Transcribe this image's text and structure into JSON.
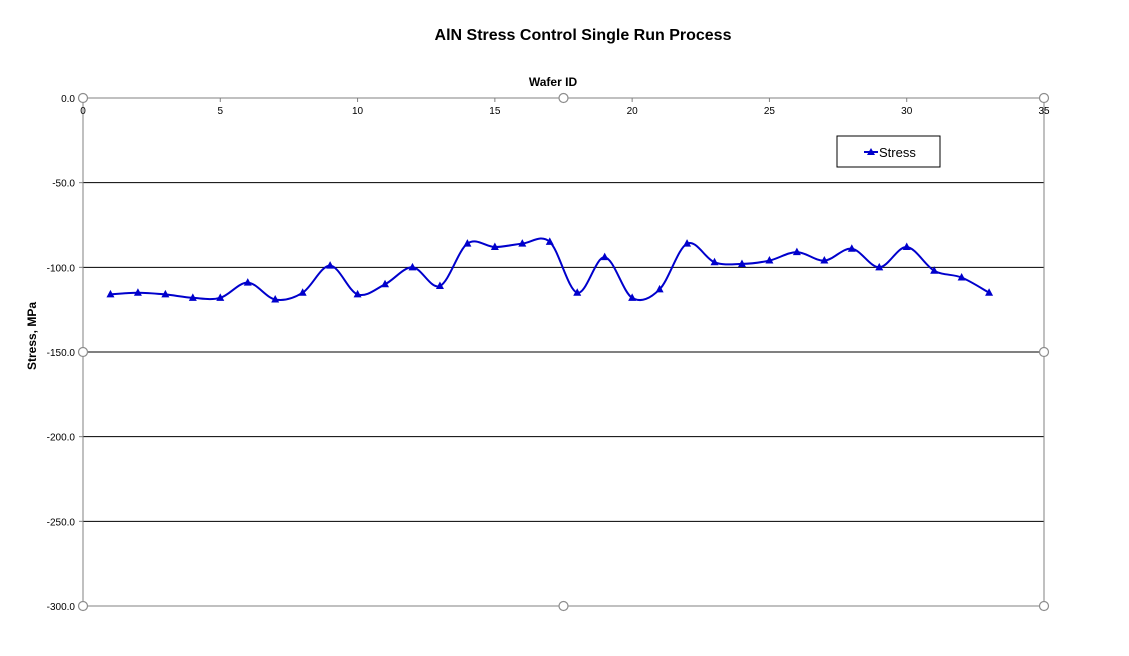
{
  "chart_data": {
    "type": "line",
    "title": "AlN Stress Control Single Run Process",
    "xlabel": "Wafer ID",
    "ylabel": "Stress, MPa",
    "xlim": [
      0,
      35
    ],
    "ylim": [
      -300,
      0
    ],
    "x_ticks": [
      "0",
      "5",
      "10",
      "15",
      "20",
      "25",
      "30",
      "35"
    ],
    "y_ticks": [
      "0.0",
      "-50.0",
      "-100.0",
      "-150.0",
      "-200.0",
      "-250.0",
      "-300.0"
    ],
    "grid": "horizontal",
    "legend_position": "top-right",
    "series": [
      {
        "name": "Stress",
        "color": "#0000cc",
        "marker": "triangle",
        "smooth": true,
        "x": [
          1,
          2,
          3,
          4,
          5,
          6,
          7,
          8,
          9,
          10,
          11,
          12,
          13,
          14,
          15,
          16,
          17,
          18,
          19,
          20,
          21,
          22,
          23,
          24,
          25,
          26,
          27,
          28,
          29,
          30,
          31,
          32,
          33
        ],
        "y": [
          -116,
          -115,
          -116,
          -118,
          -118,
          -109,
          -119,
          -115,
          -99,
          -116,
          -110,
          -100,
          -111,
          -86,
          -88,
          -86,
          -85,
          -115,
          -94,
          -118,
          -113,
          -86,
          -97,
          -98,
          -96,
          -91,
          -96,
          -89,
          -100,
          -88,
          -102,
          -106,
          -115
        ]
      }
    ]
  }
}
